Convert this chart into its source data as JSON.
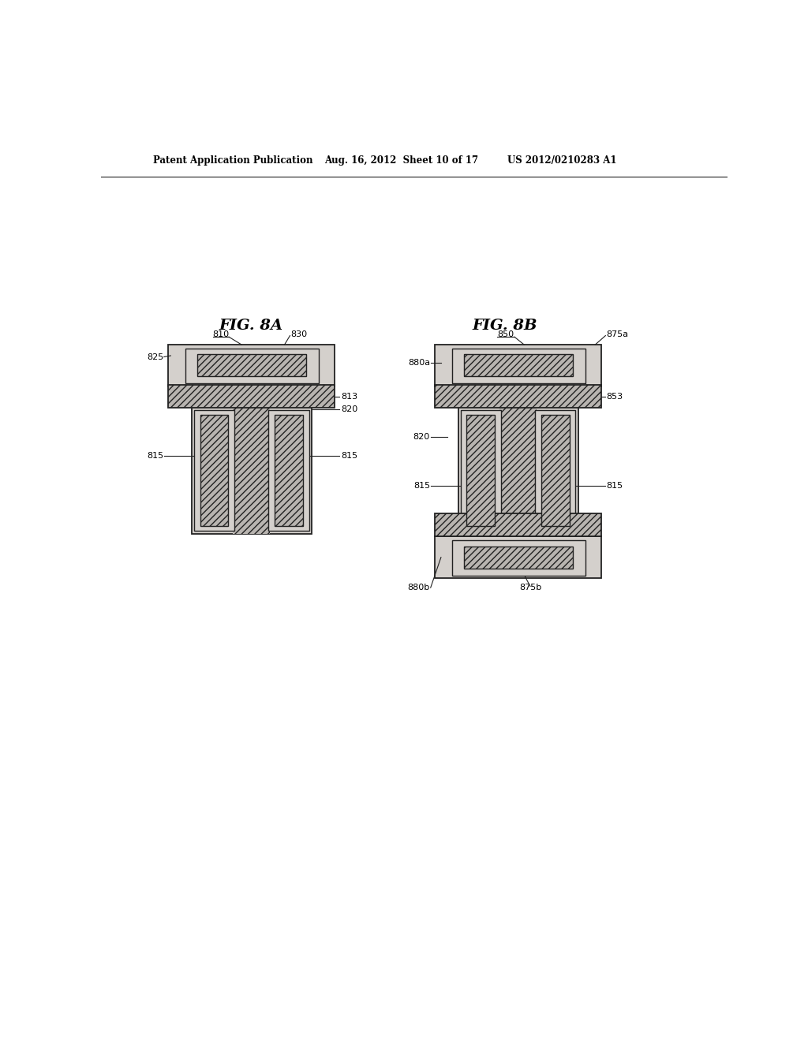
{
  "bg_color": "#ffffff",
  "header_line1": "Patent Application Publication",
  "header_line2": "Aug. 16, 2012  Sheet 10 of 17",
  "header_line3": "US 2012/0210283 A1",
  "fig8a_title": "FIG. 8A",
  "fig8b_title": "FIG. 8B",
  "stipple_color": "#d4d0cc",
  "hatch_color": "#b8b4b0",
  "hatch_pattern": "////",
  "outline_color": "#222222",
  "lw_outer": 1.3,
  "lw_inner": 1.0,
  "label_fontsize": 8.0,
  "title_fontsize": 14
}
